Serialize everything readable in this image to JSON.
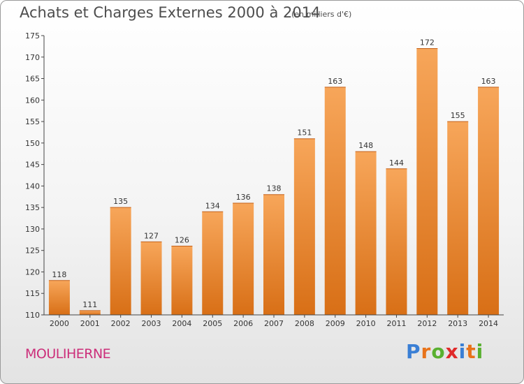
{
  "header": {
    "title": "Achats et Charges Externes 2000 à 2014",
    "unit_note": "(en milliers d'€)"
  },
  "footer": {
    "commune": "MOULIHERNE",
    "brand": [
      "P",
      "r",
      "o",
      "x",
      "i",
      "t",
      "i"
    ],
    "brand_colors": [
      "#3a7fd5",
      "#e8731a",
      "#59b030",
      "#e02a2a",
      "#3a7fd5",
      "#e8731a",
      "#59b030"
    ]
  },
  "chart_data": {
    "type": "bar",
    "title": "Achats et Charges Externes 2000 à 2014",
    "subtitle": "(en milliers d'€)",
    "categories": [
      "2000",
      "2001",
      "2002",
      "2003",
      "2004",
      "2005",
      "2006",
      "2007",
      "2008",
      "2009",
      "2010",
      "2011",
      "2012",
      "2013",
      "2014"
    ],
    "values": [
      118,
      111,
      135,
      127,
      126,
      134,
      136,
      138,
      151,
      163,
      148,
      144,
      172,
      155,
      163
    ],
    "ylim": [
      110,
      175
    ],
    "yticks": [
      110,
      115,
      120,
      125,
      130,
      135,
      140,
      145,
      150,
      155,
      160,
      165,
      170,
      175
    ],
    "grid": false,
    "bar_color_top": "#f7a65a",
    "bar_color_bottom": "#d86f16"
  }
}
